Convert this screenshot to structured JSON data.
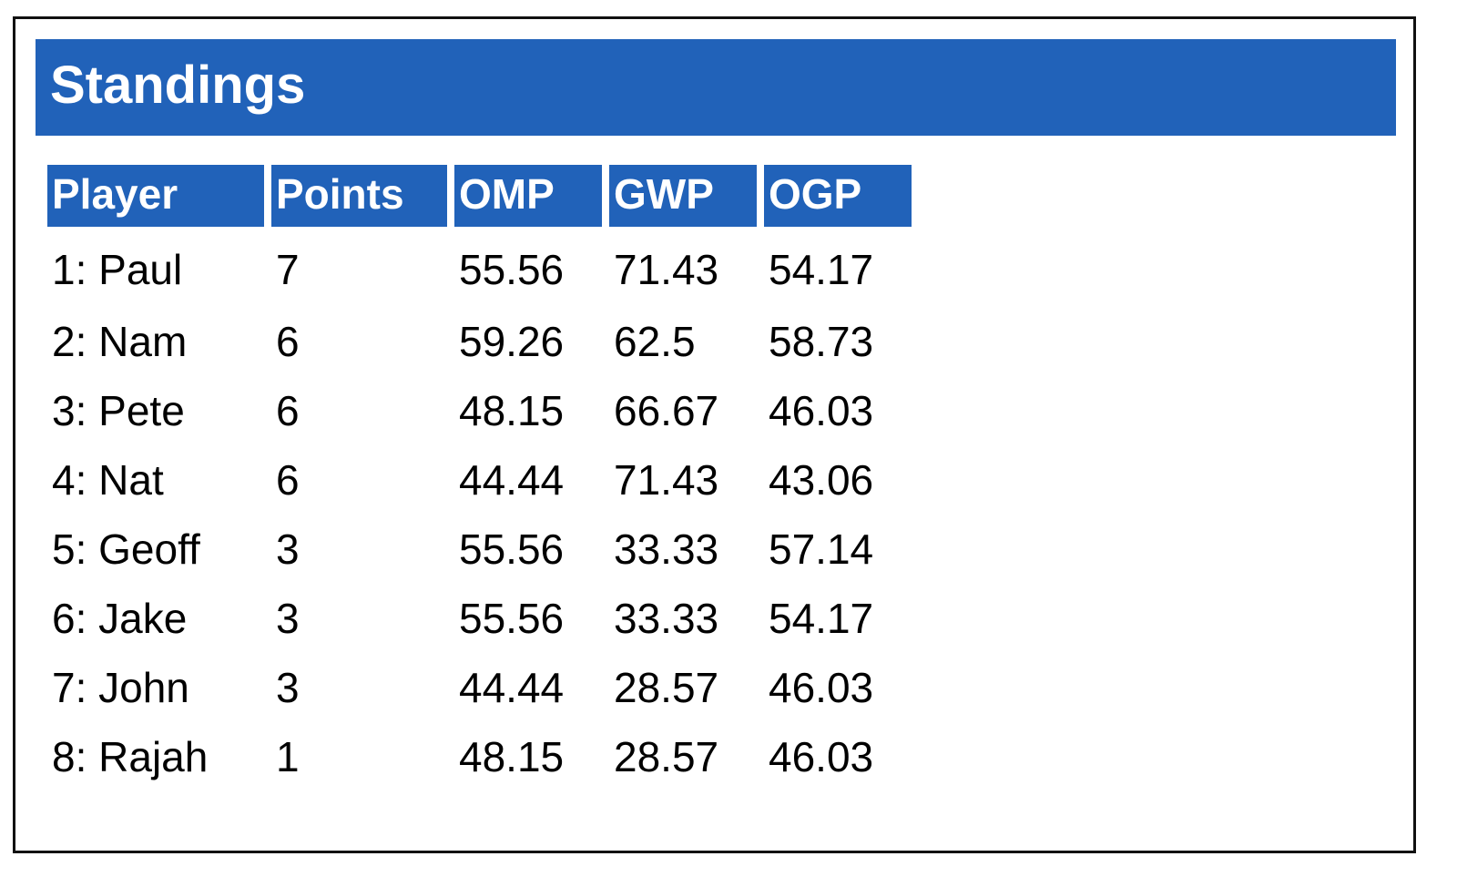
{
  "title": "Standings",
  "colors": {
    "header_bg": "#2162b9",
    "header_text": "#ffffff",
    "border": "#111111"
  },
  "table": {
    "headers": [
      "Player",
      "Points",
      "OMP",
      "GWP",
      "OGP"
    ],
    "rows": [
      [
        "1: Paul",
        "7",
        "55.56",
        "71.43",
        "54.17"
      ],
      [
        "2: Nam",
        "6",
        "59.26",
        "62.5",
        "58.73"
      ],
      [
        "3: Pete",
        "6",
        "48.15",
        "66.67",
        "46.03"
      ],
      [
        "4: Nat",
        "6",
        "44.44",
        "71.43",
        "43.06"
      ],
      [
        "5: Geoff",
        "3",
        "55.56",
        "33.33",
        "57.14"
      ],
      [
        "6: Jake",
        "3",
        "55.56",
        "33.33",
        "54.17"
      ],
      [
        "7: John",
        "3",
        "44.44",
        "28.57",
        "46.03"
      ],
      [
        "8: Rajah",
        "1",
        "48.15",
        "28.57",
        "46.03"
      ]
    ]
  }
}
